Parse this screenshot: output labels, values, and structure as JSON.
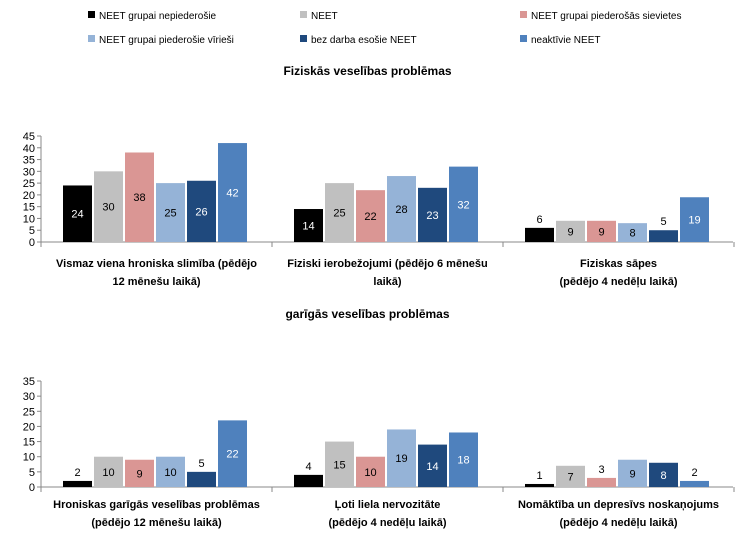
{
  "legend": [
    {
      "name": "NEET grupai nepiederošie",
      "color": "#000000"
    },
    {
      "name": "NEET",
      "color": "#c0c0c0"
    },
    {
      "name": "NEET grupai piederošās sievietes",
      "color": "#da9694"
    },
    {
      "name": "NEET grupai piederošie vīrieši",
      "color": "#95b3d7"
    },
    {
      "name": "bez darba esošie NEET",
      "color": "#1f497d"
    },
    {
      "name": "neaktīvie NEET",
      "color": "#4f81bd"
    }
  ],
  "chart_data": [
    {
      "type": "bar",
      "title": "Fiziskās veselības problēmas",
      "ylim": [
        0,
        45
      ],
      "yticks": [
        0,
        5,
        10,
        15,
        20,
        25,
        30,
        35,
        40,
        45
      ],
      "categories": [
        [
          "Vismaz viena hroniska slimība (pēdējo",
          "12 mēnešu laikā)"
        ],
        [
          "Fiziski ierobežojumi (pēdējo 6 mēnešu",
          "laikā)"
        ],
        [
          "Fiziskas sāpes",
          "(pēdējo 4 nedēļu laikā)"
        ]
      ],
      "series": [
        {
          "name": "NEET grupai nepiederošie",
          "values": [
            24,
            14,
            6
          ]
        },
        {
          "name": "NEET",
          "values": [
            30,
            25,
            9
          ]
        },
        {
          "name": "NEET grupai piederošās sievietes",
          "values": [
            38,
            22,
            9
          ]
        },
        {
          "name": "NEET grupai piederošie vīrieši",
          "values": [
            25,
            28,
            8
          ]
        },
        {
          "name": "bez darba esošie NEET",
          "values": [
            26,
            23,
            5
          ]
        },
        {
          "name": "neaktīvie NEET",
          "values": [
            42,
            32,
            19
          ]
        }
      ]
    },
    {
      "type": "bar",
      "title": "garīgās veselības problēmas",
      "ylim": [
        0,
        35
      ],
      "yticks": [
        0,
        5,
        10,
        15,
        20,
        25,
        30,
        35
      ],
      "categories": [
        [
          "Hroniskas garīgās veselības problēmas",
          "(pēdējo 12 mēnešu laikā)"
        ],
        [
          "Ļoti liela nervozitāte",
          "(pēdējo 4 nedēļu laikā)"
        ],
        [
          "Nomāktība un depresīvs noskaņojums",
          "(pēdējo 4 nedēļu laikā)"
        ]
      ],
      "series": [
        {
          "name": "NEET grupai nepiederošie",
          "values": [
            2,
            4,
            1
          ]
        },
        {
          "name": "NEET",
          "values": [
            10,
            15,
            7
          ]
        },
        {
          "name": "NEET grupai piederošās sievietes",
          "values": [
            9,
            10,
            3
          ]
        },
        {
          "name": "NEET grupai piederošie vīrieši",
          "values": [
            10,
            19,
            9
          ]
        },
        {
          "name": "bez darba esošie NEET",
          "values": [
            5,
            14,
            8
          ]
        },
        {
          "name": "neaktīvie NEET",
          "values": [
            22,
            18,
            2
          ]
        }
      ]
    }
  ]
}
